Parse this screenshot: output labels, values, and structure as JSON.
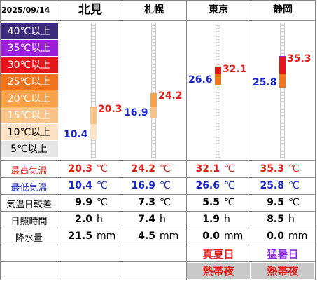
{
  "date": "2025/09/14",
  "cities": [
    {
      "name": "北見",
      "max": 20.3,
      "min": 10.4,
      "range": "9.9",
      "sunshine": "2.0",
      "rain": "21.5"
    },
    {
      "name": "札幌",
      "max": 24.2,
      "min": 16.9,
      "range": "7.3",
      "sunshine": "7.4",
      "rain": "4.5"
    },
    {
      "name": "東京",
      "max": 32.1,
      "min": 26.6,
      "range": "5.5",
      "sunshine": "1.9",
      "rain": "0.0"
    },
    {
      "name": "静岡",
      "max": 35.3,
      "min": 25.8,
      "range": "9.5",
      "sunshine": "8.5",
      "rain": "0.0"
    }
  ],
  "max_labels": [
    "20.3",
    "24.2",
    "32.1",
    "35.3"
  ],
  "min_labels": [
    "10.4",
    "16.9",
    "26.6",
    "25.8"
  ],
  "bands": [
    {
      "label": "40℃以上",
      "bg": "#3b2a7c",
      "fg": "#ffffff"
    },
    {
      "label": "35℃以上",
      "bg": "#9b1fd6",
      "fg": "#ffffff"
    },
    {
      "label": "30℃以上",
      "bg": "#e8141b",
      "fg": "#ffffff"
    },
    {
      "label": "25℃以上",
      "bg": "#f0731e",
      "fg": "#ffffff"
    },
    {
      "label": "20℃以上",
      "bg": "#f7a24b",
      "fg": "#ffffff"
    },
    {
      "label": "15℃以上",
      "bg": "#f9c48a",
      "fg": "#ffffff"
    },
    {
      "label": "10℃以上",
      "bg": "#fde3c6",
      "fg": "#000000"
    },
    {
      "label": "5℃以上",
      "bg": "#e7e7e7",
      "fg": "#000000"
    }
  ],
  "rows": {
    "max_label": "最高気温",
    "min_label": "最低気温",
    "range_label": "気温日較差",
    "sunshine_label": "日照時間",
    "rain_label": "降水量"
  },
  "units": {
    "temp": "℃",
    "hours": "h",
    "mm": "mm"
  },
  "badges": {
    "tokyo_day": "真夏日",
    "shizuoka_day": "猛暑日",
    "night": "熱帯夜"
  },
  "colors": {
    "max": "#e0201b",
    "min": "#1a25c8",
    "day_red": "#e0201b",
    "day_purple": "#8a2be2",
    "night_bg": "#c9c9c9",
    "night_fg": "#e0201b"
  }
}
